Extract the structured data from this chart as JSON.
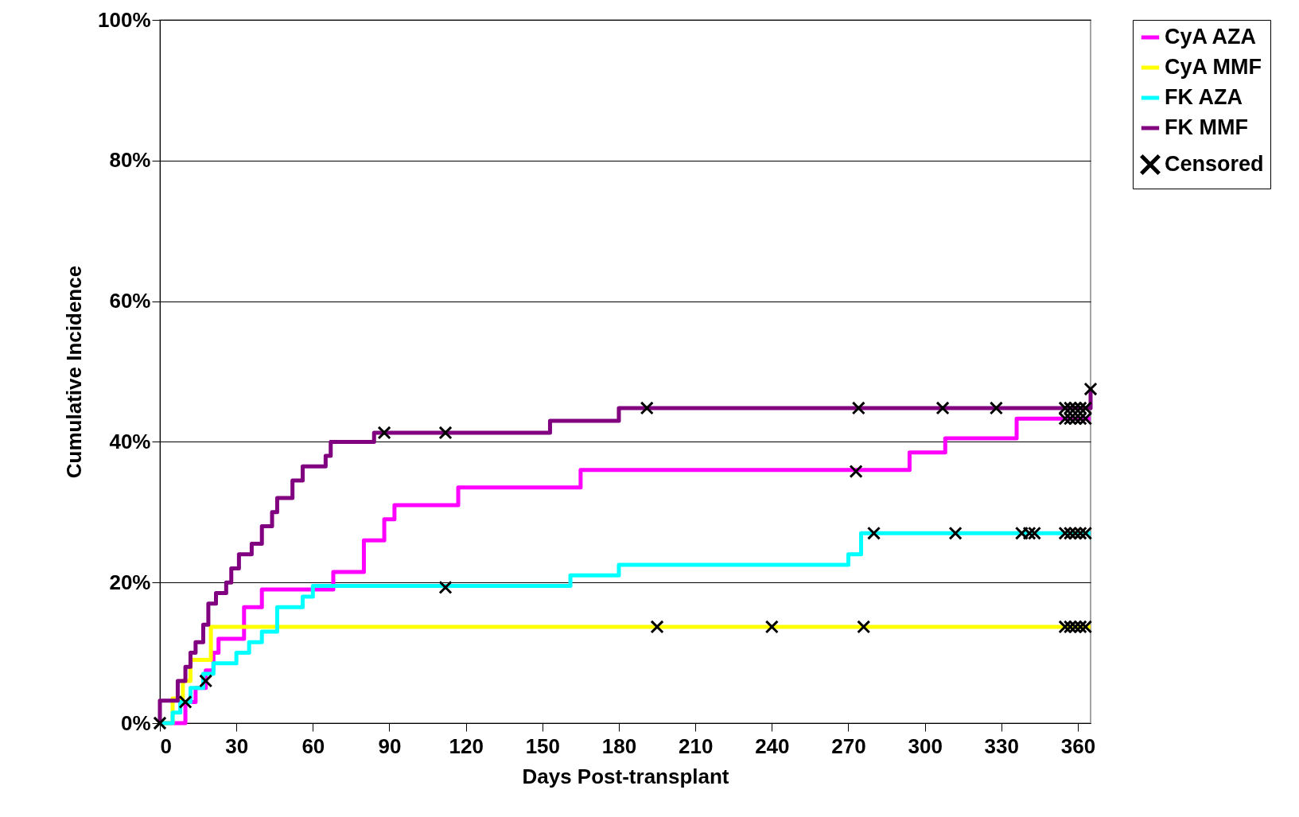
{
  "chart_data": {
    "type": "step",
    "xlabel": "Days Post-transplant",
    "ylabel": "Cumulative  Incidence",
    "xlim": [
      0,
      365
    ],
    "xticks": [
      0,
      30,
      60,
      90,
      120,
      150,
      180,
      210,
      240,
      270,
      300,
      330,
      360
    ],
    "ylim": [
      0,
      100
    ],
    "yticks": [
      {
        "value": 0,
        "label": "0%"
      },
      {
        "value": 20,
        "label": "20%"
      },
      {
        "value": 40,
        "label": "40%"
      },
      {
        "value": 60,
        "label": "60%"
      },
      {
        "value": 80,
        "label": "80%"
      },
      {
        "value": 100,
        "label": "100%"
      }
    ],
    "grid": "y",
    "legend": "right",
    "line_style": "solid",
    "series": [
      {
        "name": "CyA AZA",
        "color": "#ff00ff",
        "x": [
          0,
          10,
          14,
          18,
          21,
          23,
          33,
          40,
          68,
          80,
          88,
          92,
          117,
          165,
          294,
          308,
          336,
          365
        ],
        "values": [
          0,
          3,
          5,
          7.5,
          10,
          12,
          16.5,
          19,
          21.5,
          26,
          29,
          31,
          33.5,
          36,
          38.5,
          40.5,
          43.3,
          43.3
        ]
      },
      {
        "name": "CyA MMF",
        "color": "#ffff00",
        "x": [
          0,
          5,
          9,
          12,
          20,
          365
        ],
        "values": [
          0,
          3.5,
          6,
          9,
          13.7,
          13.7
        ]
      },
      {
        "name": "FK AZA",
        "color": "#00ffff",
        "x": [
          0,
          5,
          8,
          12,
          17,
          21,
          30,
          35,
          40,
          46,
          56,
          60,
          161,
          180,
          270,
          275,
          365
        ],
        "values": [
          0,
          1.5,
          3,
          5,
          7,
          8.5,
          10,
          11.5,
          13,
          16.5,
          18,
          19.5,
          21,
          22.5,
          24,
          27,
          27
        ]
      },
      {
        "name": "FK MMF",
        "color": "#800080",
        "x": [
          0,
          0,
          7,
          10,
          12,
          14,
          17,
          19,
          22,
          26,
          28,
          31,
          36,
          40,
          44,
          46,
          52,
          56,
          65,
          67,
          84,
          153,
          180,
          365
        ],
        "values": [
          0,
          3.2,
          6,
          8,
          10,
          11.5,
          14,
          17,
          18.5,
          20,
          22,
          24,
          25.5,
          28,
          30,
          32,
          34.5,
          36.5,
          38,
          40,
          41.3,
          43,
          44.8,
          47.5
        ]
      },
      {
        "name": "Censored",
        "type": "scatter",
        "marker": "cross",
        "color": "#000000",
        "x": [
          0,
          10,
          18,
          88,
          112,
          112,
          191,
          195,
          240,
          273,
          274,
          276,
          280,
          307,
          312,
          328,
          338,
          341,
          343,
          355,
          357,
          359,
          361,
          363,
          355,
          357,
          359,
          361,
          363,
          355,
          357,
          359,
          361,
          363,
          355,
          357,
          359,
          361,
          363,
          365
        ],
        "values": [
          0,
          3,
          6,
          41.3,
          41.3,
          19.3,
          44.8,
          13.7,
          13.7,
          35.8,
          44.8,
          13.7,
          27,
          44.8,
          27,
          44.8,
          27,
          27,
          27,
          44.8,
          44.8,
          44.8,
          44.8,
          44.8,
          43.3,
          43.3,
          43.3,
          43.3,
          43.3,
          27,
          27,
          27,
          27,
          27,
          13.7,
          13.7,
          13.7,
          13.7,
          13.7,
          47.5
        ]
      }
    ]
  }
}
